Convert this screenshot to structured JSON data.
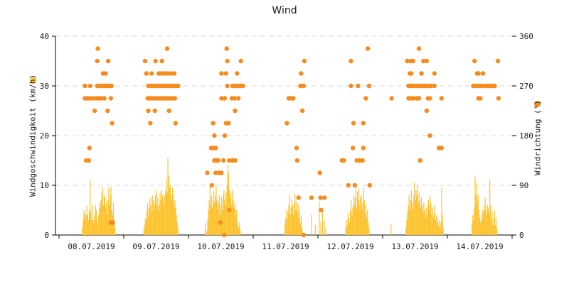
{
  "header": {
    "title": "Wind"
  },
  "colors": {
    "speed": "#fdc331",
    "direction": "#f68b1f",
    "grid": "#d9d9d9",
    "axis": "#000000",
    "text": "#1a1a1a"
  },
  "chart_data": {
    "type": "mixed",
    "title": "Wind",
    "left_axis": {
      "label": "Windgeschwindigkeit (km/h)",
      "ticks": [
        0,
        10,
        20,
        30,
        40
      ],
      "range": [
        0,
        40
      ]
    },
    "right_axis": {
      "label": "Windrichtung (°)",
      "ticks": [
        0,
        90,
        180,
        270,
        360
      ],
      "range": [
        0,
        360
      ]
    },
    "x_axis": {
      "day_labels": [
        "08.07.2019",
        "09.07.2019",
        "10.07.2019",
        "11.07.2019",
        "12.07.2019",
        "13.07.2019",
        "14.07.2019"
      ],
      "days_total": 7
    },
    "grid": {
      "dashed": true,
      "levels_kmh": [
        10,
        20,
        30,
        40
      ],
      "legend_position": "axis-labels"
    },
    "series": [
      {
        "name": "Windgeschwindigkeit",
        "type": "bar",
        "axis": "left",
        "unit": "km/h",
        "segments": [
          {
            "t0": 0.36,
            "dt": 0.012,
            "h": [
              1.5,
              3,
              4.5,
              5,
              3.5,
              4,
              6,
              4,
              3,
              5,
              11,
              4.5,
              3,
              6,
              2.5,
              3,
              4,
              6,
              5,
              3,
              2,
              4,
              6.5,
              5.5,
              7,
              8.5,
              9.7,
              6,
              7.5,
              8,
              5.5,
              6.5,
              4,
              7,
              9.5,
              6,
              8,
              9.7,
              5,
              4,
              6.5,
              3,
              1.5
            ]
          },
          {
            "t0": 1.31,
            "dt": 0.012,
            "h": [
              1,
              2,
              3.5,
              3,
              5,
              6.5,
              4,
              5.5,
              7.5,
              6,
              4.5,
              8,
              7,
              5,
              6.5,
              8,
              9,
              6,
              7.5,
              5,
              6,
              8.5,
              7,
              9,
              8,
              7.5,
              6,
              8,
              9,
              11.3,
              8.5,
              15.5,
              12,
              9.5,
              10,
              8,
              7,
              9.5,
              8,
              6,
              7,
              5.5,
              4,
              2.5,
              1.5
            ]
          },
          {
            "t0": 2.26,
            "dt": 0.012,
            "h": [
              2.5,
              1,
              0.5,
              3,
              5,
              7,
              9.7,
              6,
              8,
              5.5,
              7,
              9,
              6.5,
              8,
              10,
              7,
              5,
              6.5,
              8,
              4,
              6,
              7.5,
              5,
              8,
              9,
              7,
              6,
              8.5,
              10,
              14.2,
              12.5,
              9,
              7.5,
              8.5,
              6,
              9,
              7,
              5.5,
              6.5,
              4,
              5,
              3,
              2,
              1.5,
              2.5,
              1
            ]
          },
          {
            "t0": 3.49,
            "dt": 0.012,
            "h": [
              2,
              3.5,
              5,
              3,
              4.5,
              6,
              8,
              4,
              5.5,
              7,
              6,
              4,
              6.5,
              8.3,
              5,
              6.8,
              4.5,
              6.2,
              3.5,
              5,
              2.5,
              4,
              1.5,
              0.5
            ]
          },
          {
            "t0": 4.02,
            "dt": 0.025,
            "h": [
              6.8,
              2.5,
              4.5,
              3,
              1.5
            ]
          },
          {
            "t0": 4.43,
            "dt": 0.012,
            "h": [
              1.5,
              3,
              2,
              4.5,
              3.5,
              2.5,
              5,
              7,
              4,
              5.5,
              8,
              6,
              7.5,
              9.5,
              5.5,
              8.8,
              7,
              9.3,
              6,
              7.5,
              8,
              5,
              6.5,
              9.5,
              7,
              4.5,
              6,
              3.5,
              5,
              2.5,
              1.5
            ]
          },
          {
            "t0": 5.36,
            "dt": 0.012,
            "h": [
              1.5,
              3,
              4.5,
              6,
              8,
              5,
              7,
              9,
              6.5,
              5,
              8,
              10.5,
              7,
              9,
              8,
              10,
              6.5,
              8.5,
              7,
              5.5,
              7.5,
              6,
              4.5,
              6.5,
              5,
              3.5,
              5.5,
              4,
              6,
              7,
              5,
              8,
              6.5,
              4,
              5.5,
              3.5,
              4.5,
              6,
              3,
              4,
              2.5,
              3.5,
              2,
              3,
              1.5,
              2.5,
              9.5,
              4,
              1.5
            ]
          },
          {
            "t0": 6.38,
            "dt": 0.012,
            "h": [
              2,
              4,
              3,
              5.5,
              11.9,
              8,
              10.6,
              6.5,
              8,
              5,
              3.5,
              2.5,
              4,
              3,
              5,
              4.5,
              6,
              7.5,
              5,
              4,
              6,
              5.5,
              4.5,
              11.1,
              6,
              3,
              4.5,
              2,
              3.5,
              5,
              2,
              3.5,
              1.5
            ]
          }
        ],
        "extra_points": [
          [
            3.9,
            4
          ],
          [
            3.96,
            2
          ],
          [
            5.13,
            2.2
          ]
        ]
      },
      {
        "name": "Windrichtung",
        "type": "scatter",
        "axis": "right",
        "unit": "°",
        "points": [
          [
            0.6,
            337.5
          ],
          [
            0.59,
            315
          ],
          [
            0.76,
            315
          ],
          [
            0.68,
            292.5
          ],
          [
            0.72,
            292.5
          ],
          [
            0.4,
            270
          ],
          [
            0.48,
            270
          ],
          [
            0.59,
            270
          ],
          [
            0.62,
            270
          ],
          [
            0.64,
            270
          ],
          [
            0.67,
            270
          ],
          [
            0.7,
            270
          ],
          [
            0.73,
            270
          ],
          [
            0.75,
            270
          ],
          [
            0.78,
            270
          ],
          [
            0.81,
            270
          ],
          [
            0.4,
            247.5
          ],
          [
            0.44,
            247.5
          ],
          [
            0.48,
            247.5
          ],
          [
            0.52,
            247.5
          ],
          [
            0.57,
            247.5
          ],
          [
            0.61,
            247.5
          ],
          [
            0.65,
            247.5
          ],
          [
            0.7,
            247.5
          ],
          [
            0.8,
            247.5
          ],
          [
            0.55,
            225
          ],
          [
            0.75,
            225
          ],
          [
            0.82,
            202.5
          ],
          [
            0.47,
            157.5
          ],
          [
            0.42,
            135
          ],
          [
            0.46,
            135
          ],
          [
            0.8,
            22.5
          ],
          [
            0.83,
            22.5
          ],
          [
            1.67,
            337.5
          ],
          [
            1.33,
            315
          ],
          [
            1.49,
            315
          ],
          [
            1.59,
            315
          ],
          [
            1.35,
            292.5
          ],
          [
            1.43,
            292.5
          ],
          [
            1.54,
            292.5
          ],
          [
            1.59,
            292.5
          ],
          [
            1.63,
            292.5
          ],
          [
            1.68,
            292.5
          ],
          [
            1.73,
            292.5
          ],
          [
            1.78,
            292.5
          ],
          [
            1.38,
            270
          ],
          [
            1.42,
            270
          ],
          [
            1.45,
            270
          ],
          [
            1.48,
            270
          ],
          [
            1.52,
            270
          ],
          [
            1.55,
            270
          ],
          [
            1.58,
            270
          ],
          [
            1.62,
            270
          ],
          [
            1.65,
            270
          ],
          [
            1.68,
            270
          ],
          [
            1.71,
            270
          ],
          [
            1.75,
            270
          ],
          [
            1.78,
            270
          ],
          [
            1.81,
            270
          ],
          [
            1.84,
            270
          ],
          [
            1.37,
            247.5
          ],
          [
            1.41,
            247.5
          ],
          [
            1.44,
            247.5
          ],
          [
            1.48,
            247.5
          ],
          [
            1.52,
            247.5
          ],
          [
            1.56,
            247.5
          ],
          [
            1.6,
            247.5
          ],
          [
            1.64,
            247.5
          ],
          [
            1.68,
            247.5
          ],
          [
            1.71,
            247.5
          ],
          [
            1.75,
            247.5
          ],
          [
            1.79,
            247.5
          ],
          [
            1.38,
            225
          ],
          [
            1.48,
            225
          ],
          [
            1.7,
            225
          ],
          [
            1.41,
            202.5
          ],
          [
            1.8,
            202.5
          ],
          [
            2.59,
            337.5
          ],
          [
            2.6,
            315
          ],
          [
            2.81,
            315
          ],
          [
            2.51,
            292.5
          ],
          [
            2.58,
            292.5
          ],
          [
            2.75,
            292.5
          ],
          [
            2.6,
            270
          ],
          [
            2.68,
            270
          ],
          [
            2.71,
            270
          ],
          [
            2.75,
            270
          ],
          [
            2.78,
            270
          ],
          [
            2.81,
            270
          ],
          [
            2.84,
            270
          ],
          [
            2.51,
            247.5
          ],
          [
            2.56,
            247.5
          ],
          [
            2.67,
            247.5
          ],
          [
            2.71,
            247.5
          ],
          [
            2.77,
            247.5
          ],
          [
            2.72,
            225
          ],
          [
            2.38,
            202.5
          ],
          [
            2.58,
            202.5
          ],
          [
            2.62,
            202.5
          ],
          [
            2.4,
            180
          ],
          [
            2.56,
            180
          ],
          [
            2.35,
            157.5
          ],
          [
            2.38,
            157.5
          ],
          [
            2.42,
            157.5
          ],
          [
            2.4,
            135
          ],
          [
            2.43,
            135
          ],
          [
            2.46,
            135
          ],
          [
            2.54,
            135
          ],
          [
            2.63,
            135
          ],
          [
            2.68,
            135
          ],
          [
            2.72,
            135
          ],
          [
            2.29,
            112.5
          ],
          [
            2.42,
            112.5
          ],
          [
            2.47,
            112.5
          ],
          [
            2.51,
            112.5
          ],
          [
            2.36,
            90
          ],
          [
            2.63,
            45
          ],
          [
            2.49,
            22.5
          ],
          [
            2.55,
            0
          ],
          [
            3.79,
            315
          ],
          [
            3.74,
            292.5
          ],
          [
            3.73,
            270
          ],
          [
            3.78,
            270
          ],
          [
            3.55,
            247.5
          ],
          [
            3.59,
            247.5
          ],
          [
            3.62,
            247.5
          ],
          [
            3.76,
            225
          ],
          [
            3.52,
            202.5
          ],
          [
            3.67,
            157.5
          ],
          [
            3.68,
            135
          ],
          [
            3.7,
            67.5
          ],
          [
            3.9,
            67.5
          ],
          [
            3.78,
            0
          ],
          [
            4.77,
            337.5
          ],
          [
            4.51,
            315
          ],
          [
            4.51,
            270
          ],
          [
            4.62,
            270
          ],
          [
            4.79,
            270
          ],
          [
            4.74,
            247.5
          ],
          [
            4.55,
            202.5
          ],
          [
            4.7,
            202.5
          ],
          [
            4.54,
            157.5
          ],
          [
            4.7,
            157.5
          ],
          [
            4.37,
            135
          ],
          [
            4.4,
            135
          ],
          [
            4.6,
            135
          ],
          [
            4.64,
            135
          ],
          [
            4.69,
            135
          ],
          [
            4.03,
            112.5
          ],
          [
            4.47,
            90
          ],
          [
            4.57,
            90
          ],
          [
            4.8,
            90
          ],
          [
            4.04,
            67.5
          ],
          [
            4.1,
            67.5
          ],
          [
            4.05,
            45
          ],
          [
            5.56,
            337.5
          ],
          [
            5.38,
            315
          ],
          [
            5.43,
            315
          ],
          [
            5.47,
            315
          ],
          [
            5.63,
            315
          ],
          [
            5.68,
            315
          ],
          [
            5.42,
            292.5
          ],
          [
            5.44,
            292.5
          ],
          [
            5.6,
            292.5
          ],
          [
            5.8,
            292.5
          ],
          [
            5.4,
            270
          ],
          [
            5.43,
            270
          ],
          [
            5.46,
            270
          ],
          [
            5.49,
            270
          ],
          [
            5.53,
            270
          ],
          [
            5.56,
            270
          ],
          [
            5.59,
            270
          ],
          [
            5.63,
            270
          ],
          [
            5.66,
            270
          ],
          [
            5.69,
            270
          ],
          [
            5.73,
            270
          ],
          [
            5.75,
            270
          ],
          [
            5.8,
            270
          ],
          [
            5.14,
            247.5
          ],
          [
            5.4,
            247.5
          ],
          [
            5.44,
            247.5
          ],
          [
            5.48,
            247.5
          ],
          [
            5.53,
            247.5
          ],
          [
            5.56,
            247.5
          ],
          [
            5.7,
            247.5
          ],
          [
            5.73,
            247.5
          ],
          [
            5.91,
            247.5
          ],
          [
            5.68,
            225
          ],
          [
            5.73,
            180
          ],
          [
            5.87,
            157.5
          ],
          [
            5.91,
            157.5
          ],
          [
            5.58,
            135
          ],
          [
            6.42,
            315
          ],
          [
            6.78,
            315
          ],
          [
            6.46,
            292.5
          ],
          [
            6.48,
            292.5
          ],
          [
            6.55,
            292.5
          ],
          [
            6.4,
            270
          ],
          [
            6.43,
            270
          ],
          [
            6.46,
            270
          ],
          [
            6.5,
            270
          ],
          [
            6.53,
            270
          ],
          [
            6.58,
            270
          ],
          [
            6.62,
            270
          ],
          [
            6.65,
            270
          ],
          [
            6.68,
            270
          ],
          [
            6.71,
            270
          ],
          [
            6.73,
            270
          ],
          [
            6.48,
            247.5
          ],
          [
            6.51,
            247.5
          ],
          [
            6.79,
            247.5
          ]
        ]
      }
    ]
  }
}
